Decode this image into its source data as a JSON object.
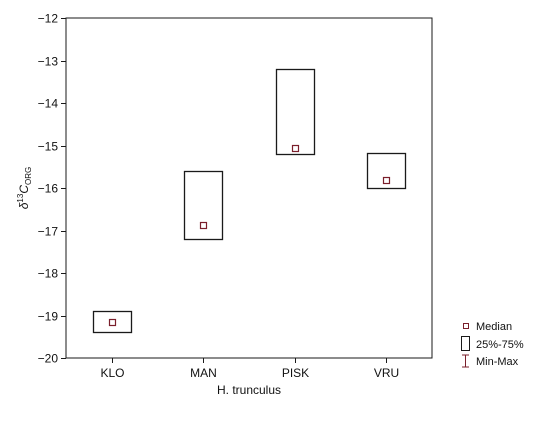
{
  "chart_data": {
    "type": "box",
    "xlabel": "H. trunculus",
    "ylabel": {
      "symbol": "δ",
      "superscript": "13",
      "main": "C",
      "subscript": "ORG"
    },
    "ylim": [
      -20,
      -12
    ],
    "yticks": [
      -20,
      -19,
      -18,
      -17,
      -16,
      -15,
      -14,
      -13,
      -12
    ],
    "grid": false,
    "legend_position": "right",
    "categories": [
      "KLO",
      "MAN",
      "PISK",
      "VRU"
    ],
    "boxes": [
      {
        "category": "KLO",
        "median": -19.15,
        "q1": -19.4,
        "q3": -18.9
      },
      {
        "category": "MAN",
        "median": -16.88,
        "q1": -17.2,
        "q3": -15.6
      },
      {
        "category": "PISK",
        "median": -15.05,
        "q1": -15.2,
        "q3": -13.2
      },
      {
        "category": "VRU",
        "median": -15.82,
        "q1": -16.0,
        "q3": -15.17
      }
    ],
    "legend": [
      "Median",
      "25%-75%",
      "Min-Max"
    ],
    "colors": {
      "box_stroke": "#1a1a1a",
      "median_marker": "#7a1f2b",
      "axis": "#1a1a1a"
    }
  }
}
